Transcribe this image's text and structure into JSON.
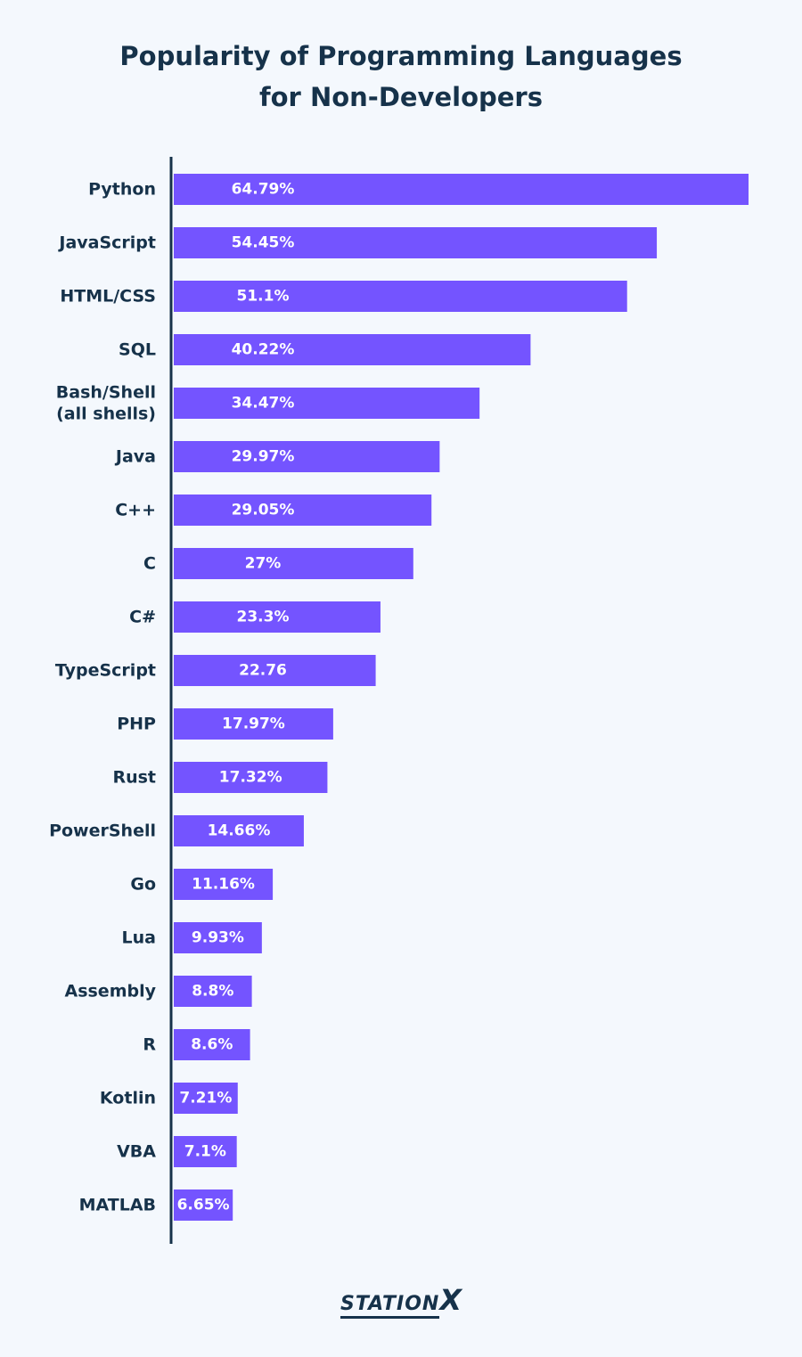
{
  "title_line1": "Popularity of Programming Languages",
  "title_line2": "for Non-Developers",
  "brand": {
    "text": "STATION",
    "mark": "X"
  },
  "colors": {
    "bar": "#7454ff",
    "axis": "#16324a",
    "background": "#f4f8fd",
    "text": "#16324a"
  },
  "chart_data": {
    "type": "bar",
    "orientation": "horizontal",
    "title": "Popularity of Programming Languages for Non-Developers",
    "xlim": [
      0,
      64.79
    ],
    "categories": [
      [
        "Python"
      ],
      [
        "JavaScript"
      ],
      [
        "HTML/CSS"
      ],
      [
        "SQL"
      ],
      [
        "Bash/Shell",
        "(all shells)"
      ],
      [
        "Java"
      ],
      [
        "C++"
      ],
      [
        "C"
      ],
      [
        "C#"
      ],
      [
        "TypeScript"
      ],
      [
        "PHP"
      ],
      [
        "Rust"
      ],
      [
        "PowerShell"
      ],
      [
        "Go"
      ],
      [
        "Lua"
      ],
      [
        "Assembly"
      ],
      [
        "R"
      ],
      [
        "Kotlin"
      ],
      [
        "VBA"
      ],
      [
        "MATLAB"
      ]
    ],
    "values": [
      64.79,
      54.45,
      51.1,
      40.22,
      34.47,
      29.97,
      29.05,
      27,
      23.3,
      22.76,
      17.97,
      17.32,
      14.66,
      11.16,
      9.93,
      8.8,
      8.6,
      7.21,
      7.1,
      6.65
    ],
    "value_labels": [
      "64.79%",
      "54.45%",
      "51.1%",
      "40.22%",
      "34.47%",
      "29.97%",
      "29.05%",
      "27%",
      "23.3%",
      "22.76",
      "17.97%",
      "17.32%",
      "14.66%",
      "11.16%",
      "9.93%",
      "8.8%",
      "8.6%",
      "7.21%",
      "7.1%",
      "6.65%"
    ]
  }
}
